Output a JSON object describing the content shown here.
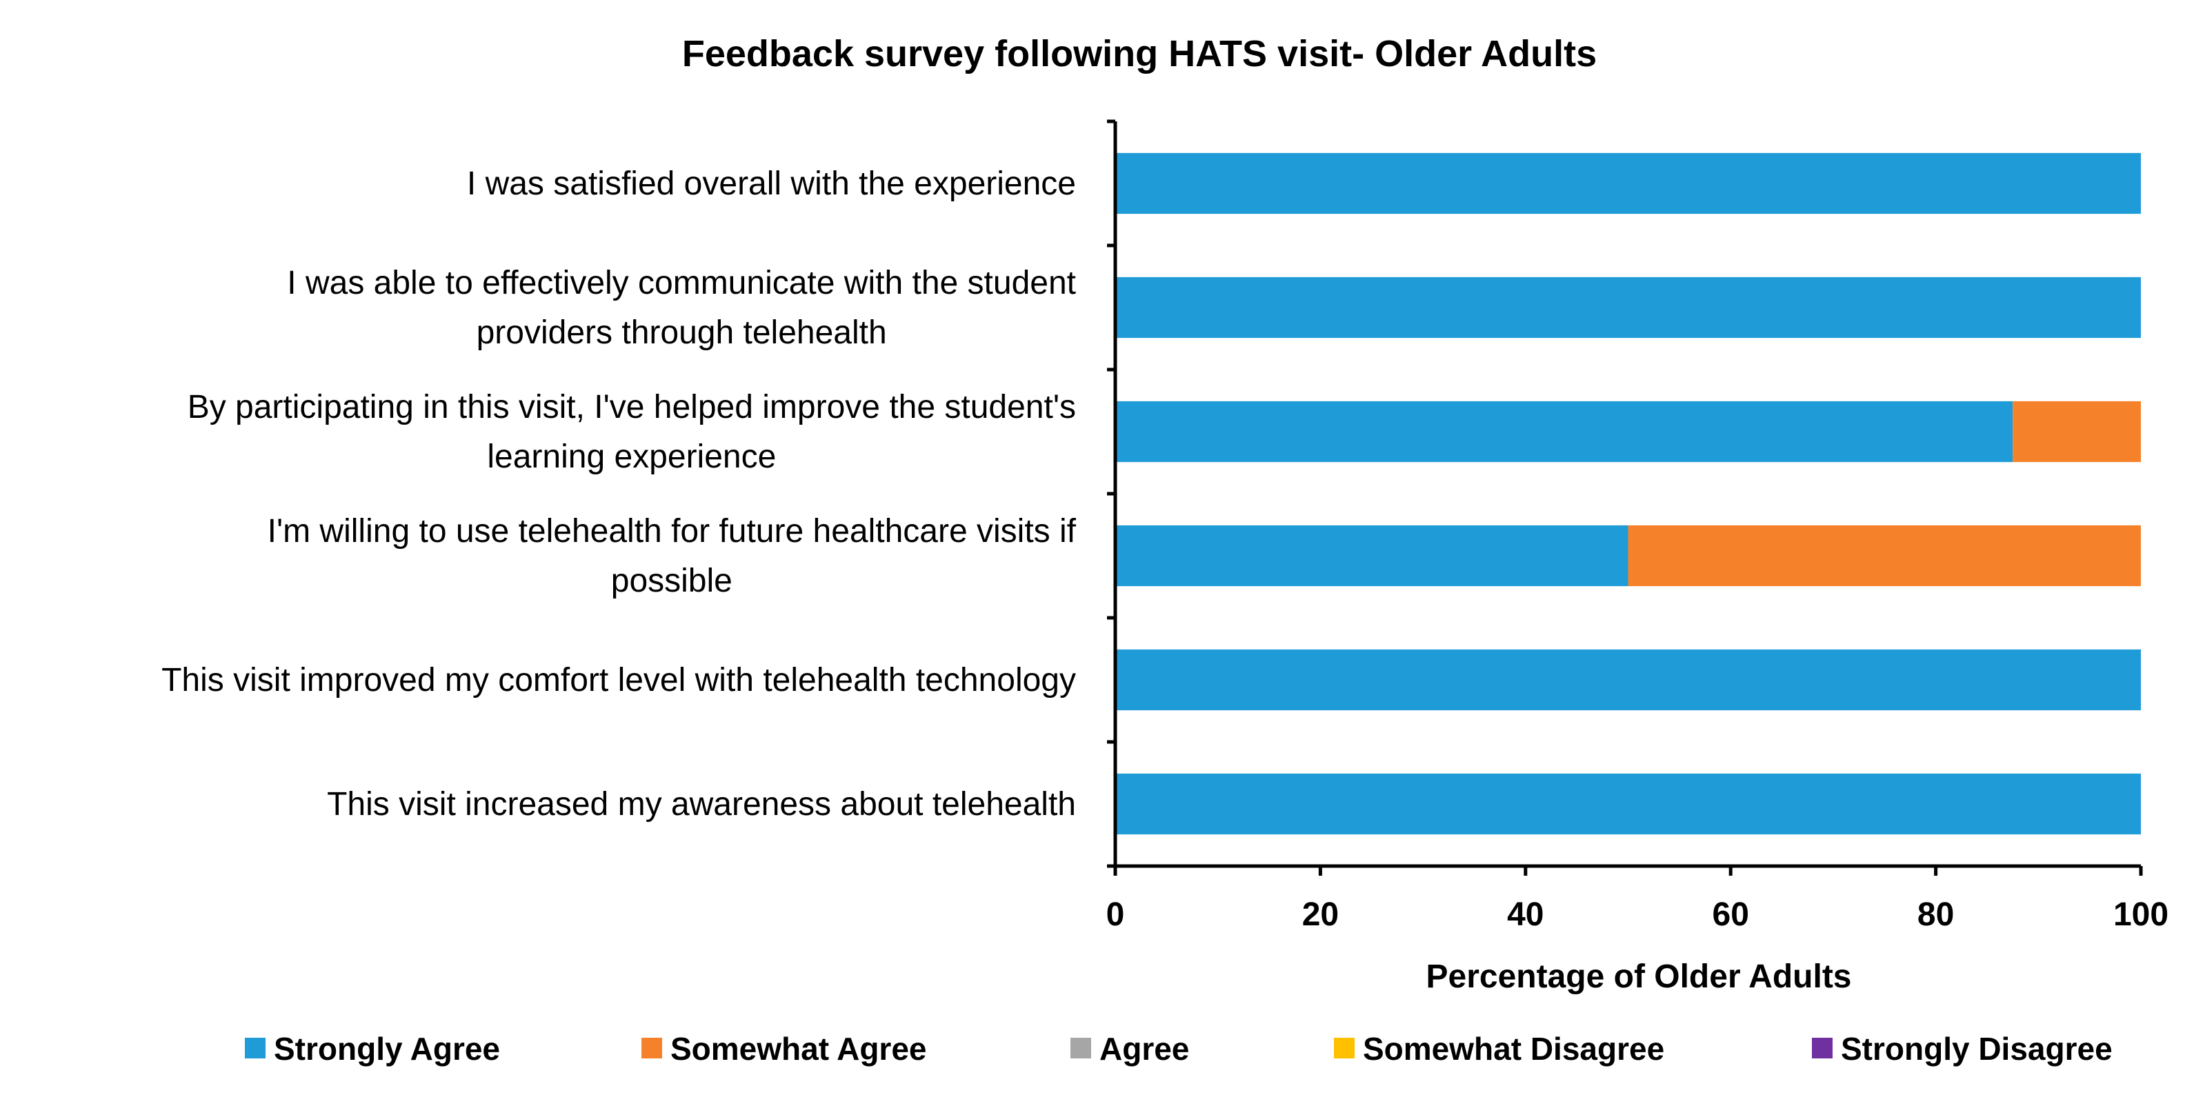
{
  "chart_data": {
    "type": "bar",
    "orientation": "horizontal",
    "stacked": true,
    "title": "Feedback survey following HATS visit- Older Adults",
    "xlabel": "Percentage of Older Adults",
    "ylabel": "",
    "xlim": [
      0,
      100
    ],
    "xticks": [
      0,
      20,
      40,
      60,
      80,
      100
    ],
    "grid": false,
    "legend_position": "bottom",
    "categories": [
      [
        "I was satisfied overall with the experience"
      ],
      [
        "I was able to effectively communicate with the student",
        "providers through telehealth"
      ],
      [
        "By participating in this visit, I've helped improve the student's",
        "learning experience"
      ],
      [
        "I'm willing to use telehealth for future healthcare visits if",
        "possible"
      ],
      [
        "This visit improved my comfort level with telehealth technology"
      ],
      [
        "This visit increased my awareness about telehealth"
      ]
    ],
    "series": [
      {
        "name": "Strongly Agree",
        "color": "#1f9bd7",
        "values": [
          100,
          100,
          87.5,
          50,
          100,
          100
        ]
      },
      {
        "name": "Somewhat Agree",
        "color": "#f5822a",
        "values": [
          0,
          0,
          12.5,
          50,
          0,
          0
        ]
      },
      {
        "name": "Agree",
        "color": "#a6a6a6",
        "values": [
          0,
          0,
          0,
          0,
          0,
          0
        ]
      },
      {
        "name": "Somewhat Disagree",
        "color": "#ffc000",
        "values": [
          0,
          0,
          0,
          0,
          0,
          0
        ]
      },
      {
        "name": "Strongly Disagree",
        "color": "#7030a0",
        "values": [
          0,
          0,
          0,
          0,
          0,
          0
        ]
      }
    ]
  }
}
